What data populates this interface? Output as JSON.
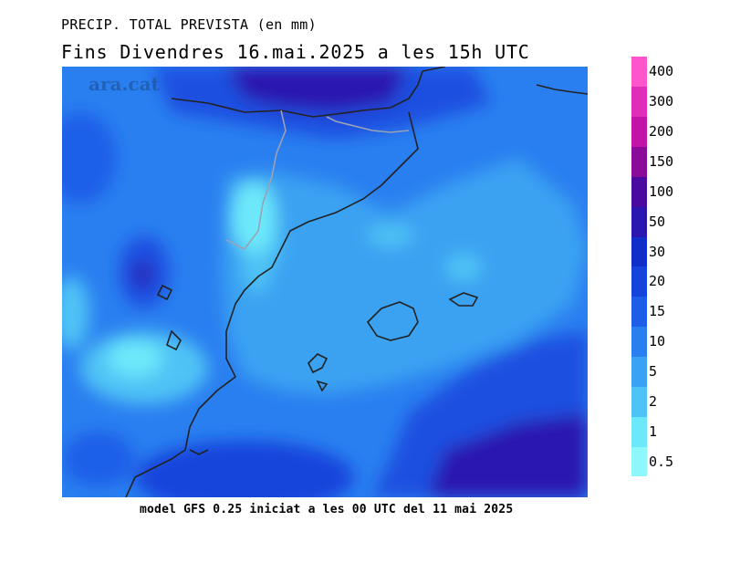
{
  "header": {
    "title": "PRECIP. TOTAL PREVISTA (en mm)",
    "subtitle": "Fins Divendres 16.mai.2025 a les 15h UTC"
  },
  "footer": {
    "model_text": "model GFS 0.25 iniciat a les 00 UTC del 11 mai 2025"
  },
  "watermark": "ara.cat",
  "legend": {
    "levels": [
      "0.5",
      "1",
      "2",
      "5",
      "10",
      "15",
      "20",
      "30",
      "50",
      "100",
      "150",
      "200",
      "300",
      "400"
    ],
    "colors": [
      "#8ef7fb",
      "#6de8fa",
      "#4fc3f5",
      "#3aa2f2",
      "#2a7ff0",
      "#1d5ee8",
      "#1444dc",
      "#0f2fc8",
      "#2a17b0",
      "#4a0aa0",
      "#8a0a9a",
      "#c215a8",
      "#e02dba",
      "#ff55cc"
    ]
  }
}
